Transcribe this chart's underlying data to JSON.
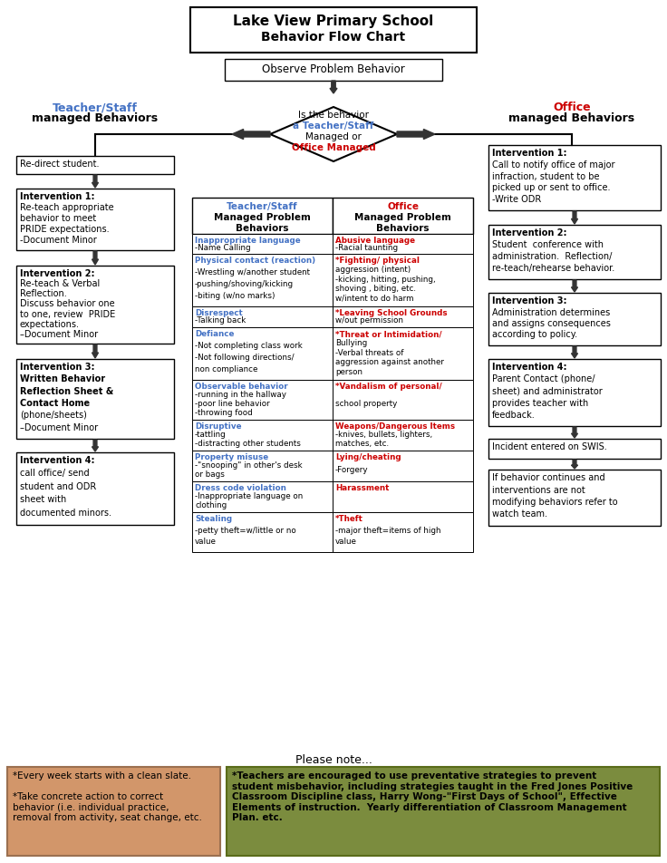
{
  "title_line1": "Lake View Primary School",
  "title_line2": "Behavior Flow Chart",
  "observe_box": "Observe Problem Behavior",
  "diamond_line1": "Is the behavior",
  "diamond_line2": "a Teacher/Staff",
  "diamond_line3": "Managed or",
  "diamond_line4": "Office Managed",
  "left_header_blue": "Teacher/Staff",
  "left_header_black": "managed Behaviors",
  "right_header_red": "Office",
  "right_header_black": "managed Behaviors",
  "left_box0": "Re-direct student.",
  "left_box1_l1": "Intervention 1:",
  "left_box1_l2": "Re-teach appropriate",
  "left_box1_l3": "behavior to meet",
  "left_box1_l4": "PRIDE expectations.",
  "left_box1_l5": "-Document Minor",
  "left_box2_l1": "Intervention 2:",
  "left_box2_l2": "Re-teach & Verbal",
  "left_box2_l3": "Reflection.",
  "left_box2_l4": "Discuss behavior one",
  "left_box2_l5": "to one, review  PRIDE",
  "left_box2_l6": "expectations.",
  "left_box2_l7": "–Document Minor",
  "left_box3_l1": "Intervention 3:",
  "left_box3_l2": "Written Behavior",
  "left_box3_l3": "Reflection Sheet &",
  "left_box3_l4": "Contact Home",
  "left_box3_l5": "(phone/sheets)",
  "left_box3_l6": "–Document Minor",
  "left_box4_l1": "Intervention 4:",
  "left_box4_l2": "call office/ send",
  "left_box4_l3": "student and ODR",
  "left_box4_l4": "sheet with",
  "left_box4_l5": "documented minors.",
  "right_box0_l1": "Intervention 1:",
  "right_box0_l2": "Call to notify office of major",
  "right_box0_l3": "infraction, student to be",
  "right_box0_l4": "picked up or sent to office.",
  "right_box0_l5": "-Write ODR",
  "right_box1_l1": "Intervention 2:",
  "right_box1_l2": "Student  conference with",
  "right_box1_l3": "administration.  Reflection/",
  "right_box1_l4": "re-teach/rehearse behavior.",
  "right_box2_l1": "Intervention 3:",
  "right_box2_l2": "Administration determines",
  "right_box2_l3": "and assigns consequences",
  "right_box2_l4": "according to policy.",
  "right_box3_l1": "Intervention 4:",
  "right_box3_l2": "Parent Contact (phone/",
  "right_box3_l3": "sheet) and administrator",
  "right_box3_l4": "provides teacher with",
  "right_box3_l5": "feedback.",
  "right_box4": "Incident entered on SWIS.",
  "right_box5_l1": "If behavior continues and",
  "right_box5_l2": "interventions are not",
  "right_box5_l3": "modifying behaviors refer to",
  "right_box5_l4": "watch team.",
  "table_left_hdr1": "Teacher/Staff",
  "table_left_hdr2": "Managed Problem",
  "table_left_hdr3": "Behaviors",
  "table_right_hdr1": "Office",
  "table_right_hdr2": "Managed Problem",
  "table_right_hdr3": "Behaviors",
  "table_rows_left": [
    [
      "Inappropriate language",
      "-Name Calling"
    ],
    [
      "Physical contact (reaction)",
      "-Wrestling w/another student",
      "-pushing/shoving/kicking",
      "-biting (w/no marks)"
    ],
    [
      "Disrespect",
      "-Talking back"
    ],
    [
      "Defiance",
      "-Not completing class work",
      "-Not following directions/",
      "non compliance"
    ],
    [
      "Observable behavior",
      "-running in the hallway",
      "-poor line behavior",
      "-throwing food"
    ],
    [
      "Disruptive",
      "-tattling",
      "-distracting other students"
    ],
    [
      "Property misuse",
      "-\"snooping\" in other's desk",
      "or bags"
    ],
    [
      "Dress code violation",
      "-Inappropriate language on",
      "clothing"
    ],
    [
      "Stealing",
      "-petty theft=w/little or no",
      "value"
    ]
  ],
  "table_rows_right": [
    [
      "Abusive language",
      "-Racial taunting"
    ],
    [
      "*Fighting/ physical",
      "aggression (intent)",
      "-kicking, hitting, pushing,",
      "shoving , biting, etc.",
      "w/intent to do harm"
    ],
    [
      "*Leaving School Grounds",
      "w/out permission"
    ],
    [
      "*Threat or Intimidation/",
      "Bullying",
      "-Verbal threats of",
      "aggression against another",
      "person"
    ],
    [
      "*Vandalism of personal/",
      "school property"
    ],
    [
      "Weapons/Dangerous Items",
      "-knives, bullets, lighters,",
      "matches, etc."
    ],
    [
      "Lying/cheating",
      "-Forgery"
    ],
    [
      "Harassment"
    ],
    [
      "*Theft",
      "-major theft=items of high",
      "value"
    ]
  ],
  "note_label": "Please note...",
  "note_left_text": "*Every week starts with a clean slate.\n\n*Take concrete action to correct\nbehavior (i.e. individual practice,\nremoval from activity, seat change, etc.",
  "note_right_text": "*Teachers are encouraged to use preventative strategies to prevent\nstudent misbehavior, including strategies taught in the Fred Jones Positive\nClassroom Discipline class, Harry Wong-\"First Days of School\", Effective\nElements of instruction.  Yearly differentiation of Classroom Management\nPlan. etc.",
  "note_left_bg": "#D2966A",
  "note_right_bg": "#7B8C3E",
  "bg_color": "#FFFFFF",
  "blue_color": "#4472C4",
  "red_color": "#CC0000"
}
